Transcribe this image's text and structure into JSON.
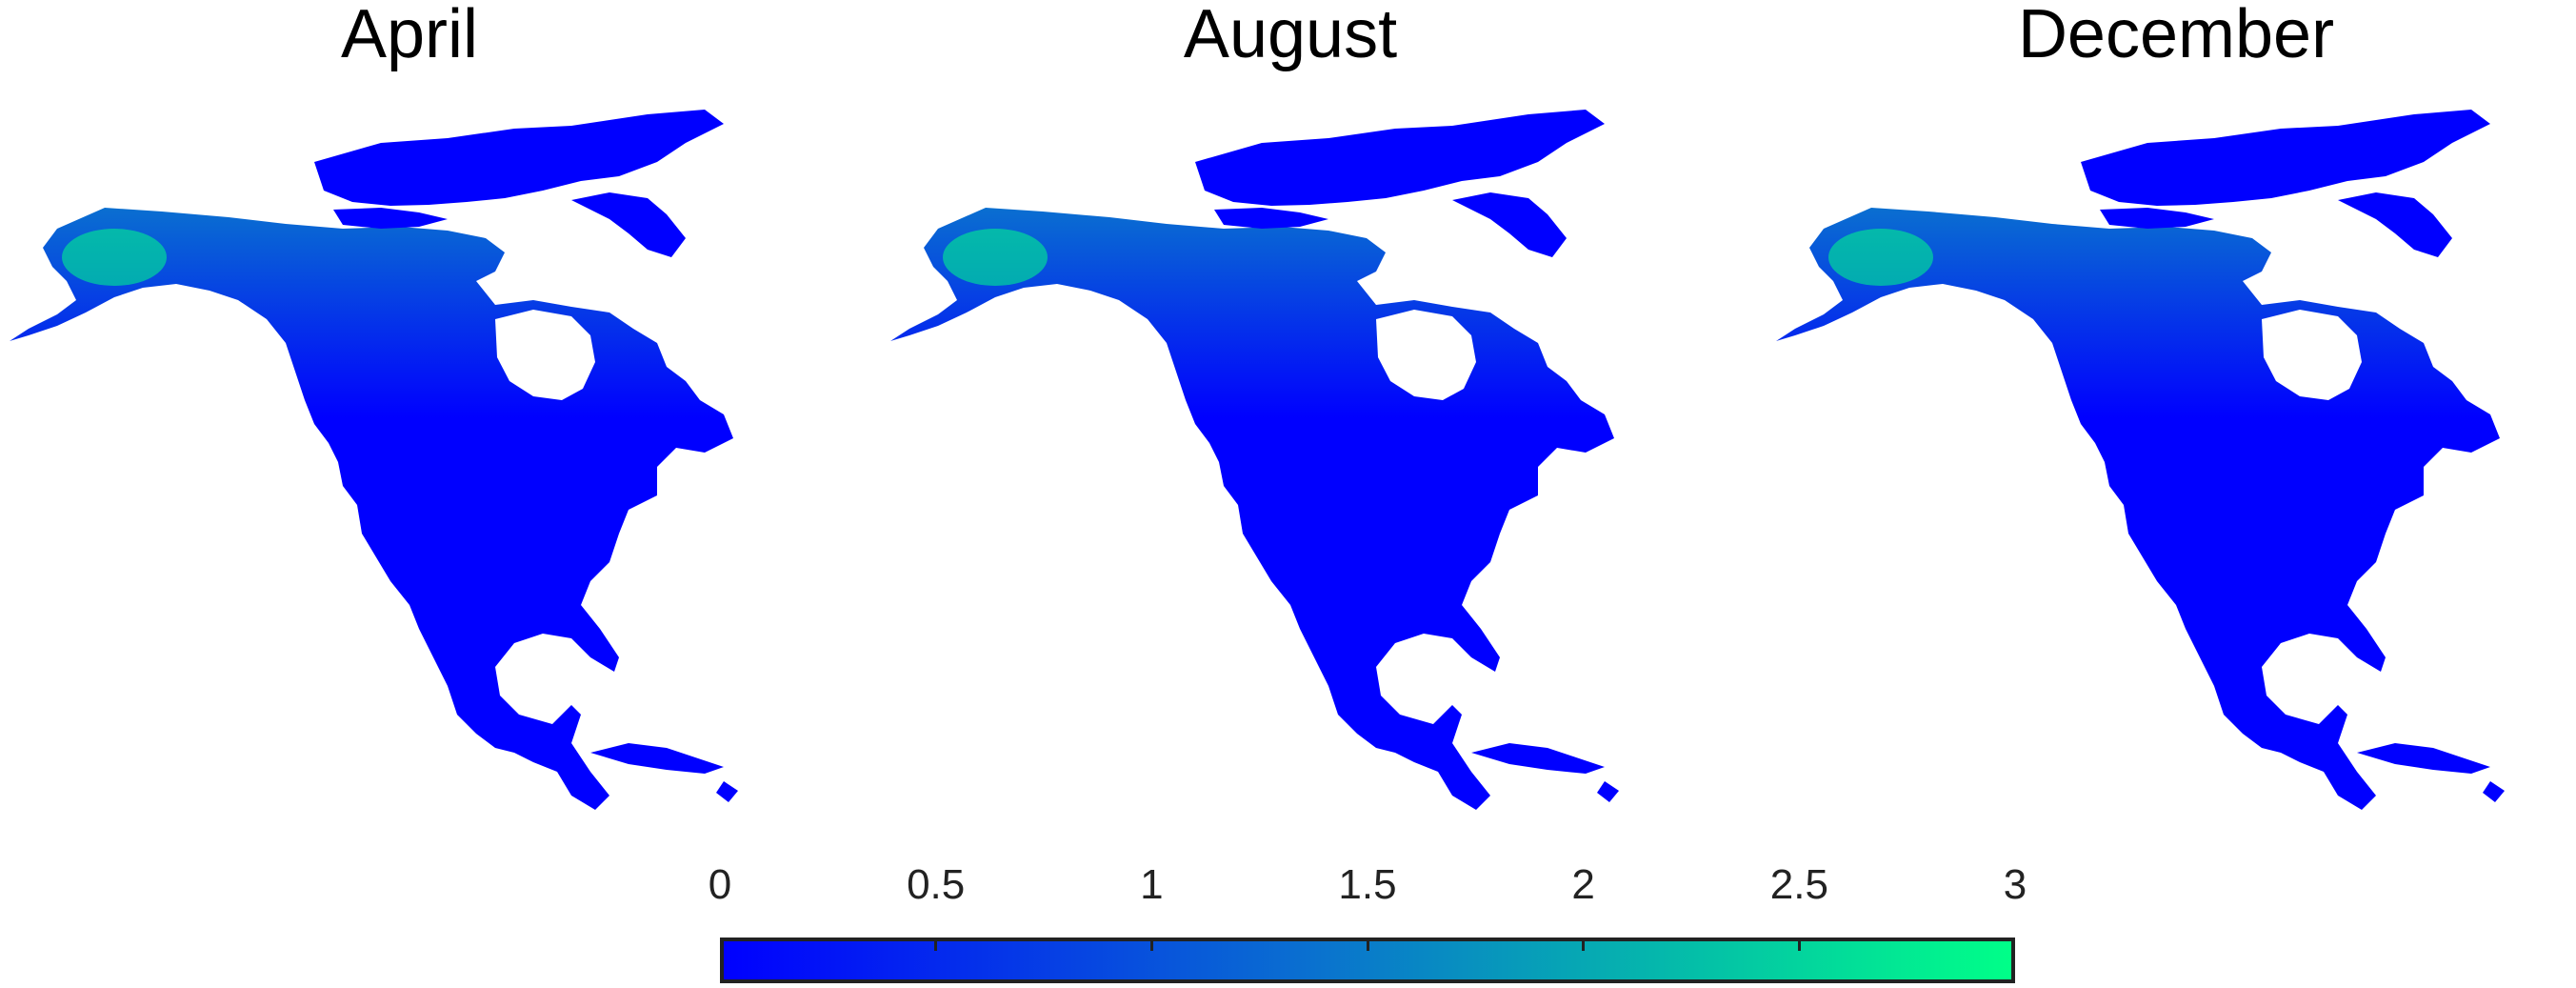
{
  "panels": [
    {
      "title": "April"
    },
    {
      "title": "August"
    },
    {
      "title": "December"
    }
  ],
  "colorbar": {
    "min": 0,
    "max": 3,
    "ticks": [
      "0",
      "0.5",
      "1",
      "1.5",
      "2",
      "2.5",
      "3"
    ],
    "colors": {
      "low": "#0000ff",
      "mid": "#0a6fd0",
      "high": "#00ff88"
    }
  }
}
